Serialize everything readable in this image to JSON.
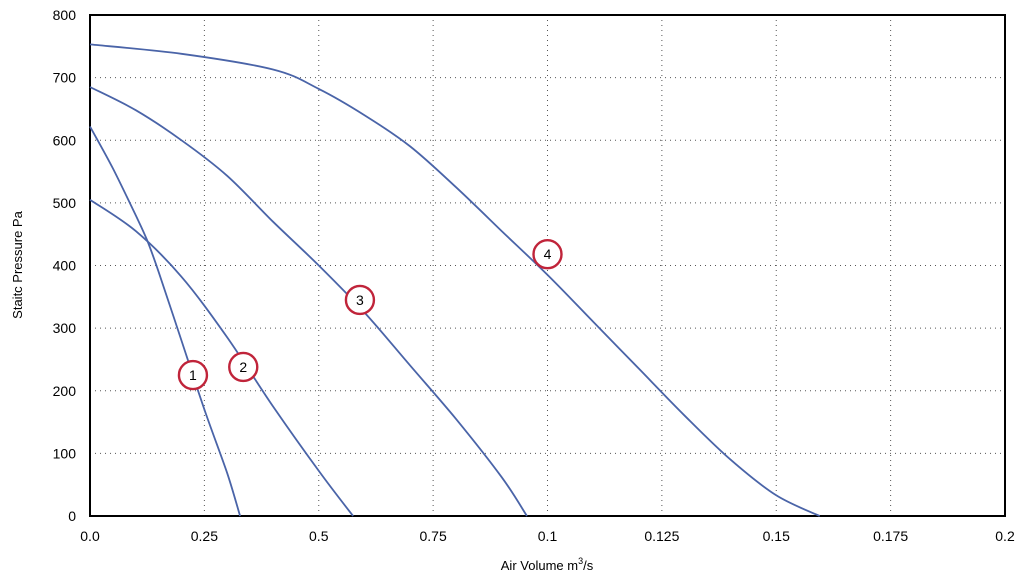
{
  "chart_data": {
    "type": "line",
    "xlabel": "Air Volume m",
    "xlabel_sup": "3",
    "xlabel_suffix": "/s",
    "ylabel": "Staitc Pressure Pa",
    "x_tick_labels": [
      "0.0",
      "0.25",
      "0.5",
      "0.75",
      "0.1",
      "0.125",
      "0.15",
      "0.175",
      "0.2"
    ],
    "y_tick_labels": [
      "0",
      "100",
      "200",
      "300",
      "400",
      "500",
      "600",
      "700",
      "800"
    ],
    "xlim": [
      0,
      0.2
    ],
    "ylim": [
      0,
      800
    ],
    "grid": true,
    "grid_style": "dotted",
    "colors": {
      "curve": "#4a64a8",
      "marker": "#c0243a",
      "frame": "#000000"
    },
    "series": [
      {
        "marker_label": "1",
        "marker_at": [
          0.0225,
          225
        ],
        "points": [
          [
            0,
            622
          ],
          [
            0.005,
            555
          ],
          [
            0.01,
            480
          ],
          [
            0.0125,
            440
          ],
          [
            0.015,
            390
          ],
          [
            0.02,
            280
          ],
          [
            0.025,
            170
          ],
          [
            0.03,
            68
          ],
          [
            0.0328,
            0
          ]
        ]
      },
      {
        "marker_label": "2",
        "marker_at": [
          0.0335,
          238
        ],
        "points": [
          [
            0,
            505
          ],
          [
            0.01,
            455
          ],
          [
            0.02,
            382
          ],
          [
            0.03,
            285
          ],
          [
            0.04,
            175
          ],
          [
            0.05,
            72
          ],
          [
            0.0575,
            0
          ]
        ]
      },
      {
        "marker_label": "3",
        "marker_at": [
          0.059,
          345
        ],
        "points": [
          [
            0,
            685
          ],
          [
            0.01,
            648
          ],
          [
            0.02,
            600
          ],
          [
            0.03,
            543
          ],
          [
            0.04,
            470
          ],
          [
            0.05,
            400
          ],
          [
            0.06,
            325
          ],
          [
            0.07,
            240
          ],
          [
            0.08,
            155
          ],
          [
            0.09,
            62
          ],
          [
            0.0955,
            0
          ]
        ]
      },
      {
        "marker_label": "4",
        "marker_at": [
          0.1,
          418
        ],
        "points": [
          [
            0,
            753
          ],
          [
            0.02,
            738
          ],
          [
            0.04,
            713
          ],
          [
            0.05,
            682
          ],
          [
            0.06,
            640
          ],
          [
            0.07,
            590
          ],
          [
            0.08,
            525
          ],
          [
            0.09,
            455
          ],
          [
            0.1,
            385
          ],
          [
            0.11,
            310
          ],
          [
            0.12,
            235
          ],
          [
            0.13,
            160
          ],
          [
            0.14,
            90
          ],
          [
            0.15,
            33
          ],
          [
            0.1595,
            0
          ]
        ]
      }
    ]
  }
}
